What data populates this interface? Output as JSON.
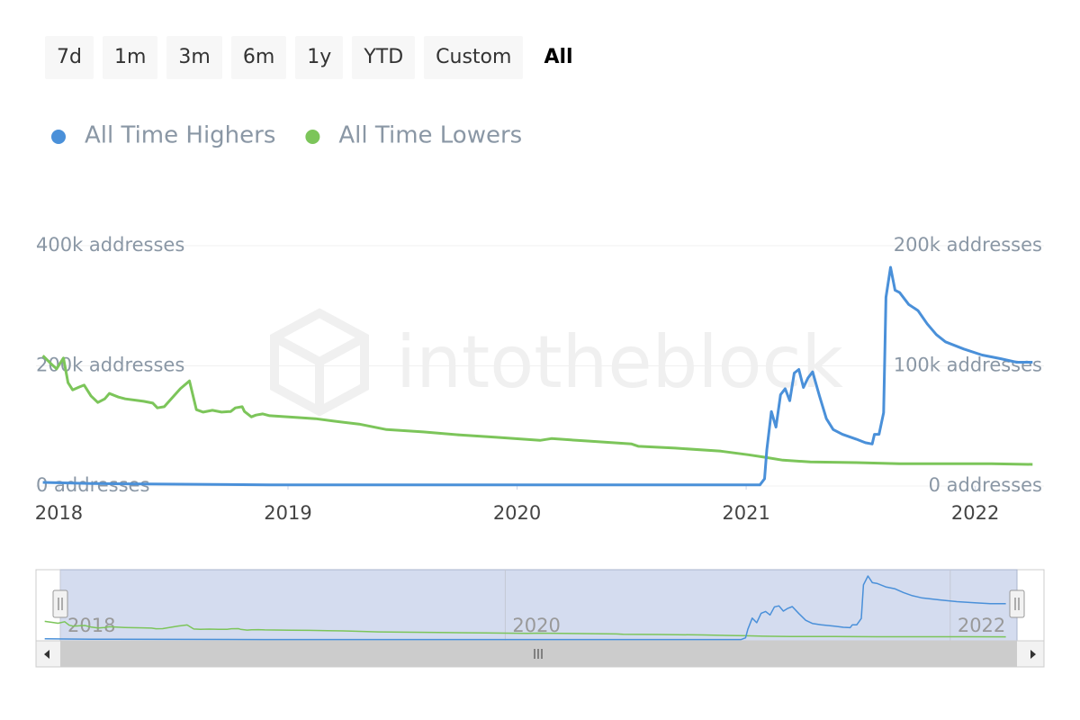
{
  "buttons": [
    "7d",
    "1m",
    "3m",
    "6m",
    "1y",
    "YTD",
    "Custom",
    "All"
  ],
  "selected_button": 7,
  "chart_data": {
    "type": "line",
    "legend": "top-left",
    "grid": true,
    "watermark": "intotheblock",
    "xlim": [
      2017.9,
      2022.3
    ],
    "xticks": [
      2018,
      2019,
      2020,
      2021,
      2022
    ],
    "ylim": [
      0,
      400000
    ],
    "yticks": [
      {
        "value": 0,
        "label": "0 addresses"
      },
      {
        "value": 200000,
        "label": "200k addresses"
      },
      {
        "value": 400000,
        "label": "400k addresses"
      }
    ],
    "y2lim": [
      0,
      200000
    ],
    "y2ticks": [
      {
        "value": 0,
        "label": "0 addresses"
      },
      {
        "value": 100000,
        "label": "100k addresses"
      },
      {
        "value": 200000,
        "label": "200k addresses"
      }
    ],
    "series": [
      {
        "name": "All Time Highers",
        "color": "#4a90d9",
        "axis": "y2",
        "x": [
          2017.93,
          2018.14,
          2018.92,
          2020.1,
          2021.06,
          2021.08,
          2021.09,
          2021.11,
          2021.13,
          2021.15,
          2021.17,
          2021.19,
          2021.21,
          2021.23,
          2021.25,
          2021.27,
          2021.29,
          2021.32,
          2021.35,
          2021.38,
          2021.42,
          2021.48,
          2021.52,
          2021.55,
          2021.56,
          2021.58,
          2021.6,
          2021.61,
          2021.63,
          2021.65,
          2021.67,
          2021.71,
          2021.75,
          2021.79,
          2021.83,
          2021.87,
          2021.95,
          2022.03,
          2022.11,
          2022.18,
          2022.25
        ],
        "values": [
          3000,
          2000,
          1000,
          1000,
          1000,
          6000,
          30000,
          62000,
          49000,
          76000,
          81000,
          71000,
          94000,
          97000,
          82000,
          90000,
          95000,
          75000,
          56000,
          47000,
          43000,
          39000,
          36000,
          35000,
          43000,
          43000,
          61000,
          157000,
          182000,
          163000,
          161000,
          151000,
          146000,
          135000,
          126000,
          120000,
          114000,
          109000,
          106000,
          103000,
          103000
        ]
      },
      {
        "name": "All Time Lowers",
        "color": "#7cc55a",
        "x": [
          2017.93,
          2017.97,
          2017.99,
          2018.02,
          2018.04,
          2018.06,
          2018.09,
          2018.11,
          2018.14,
          2018.17,
          2018.2,
          2018.22,
          2018.26,
          2018.29,
          2018.37,
          2018.41,
          2018.43,
          2018.46,
          2018.49,
          2018.53,
          2018.57,
          2018.6,
          2018.63,
          2018.67,
          2018.71,
          2018.75,
          2018.77,
          2018.8,
          2018.81,
          2018.84,
          2018.86,
          2018.89,
          2018.92,
          2019.04,
          2019.12,
          2019.2,
          2019.31,
          2019.43,
          2019.59,
          2019.75,
          2019.91,
          2020.1,
          2020.15,
          2020.3,
          2020.5,
          2020.53,
          2020.69,
          2020.89,
          2021.01,
          2021.08,
          2021.16,
          2021.28,
          2021.48,
          2021.67,
          2021.87,
          2022.07,
          2022.25
        ],
        "values": [
          217000,
          202000,
          195000,
          213000,
          172000,
          160000,
          165000,
          168000,
          150000,
          139000,
          145000,
          154000,
          148000,
          145000,
          141000,
          138000,
          130000,
          132000,
          145000,
          162000,
          175000,
          127000,
          123000,
          126000,
          123000,
          124000,
          130000,
          132000,
          124000,
          115000,
          118000,
          120000,
          117000,
          114000,
          112000,
          108000,
          103000,
          94000,
          90000,
          85000,
          81000,
          76000,
          79000,
          75000,
          70000,
          66000,
          63000,
          58000,
          52000,
          48000,
          43000,
          40000,
          39000,
          37000,
          37000,
          37000,
          36000
        ]
      }
    ],
    "navigator": {
      "xlim": [
        2018,
        2022.3
      ],
      "xticks": [
        2018,
        2020,
        2022
      ]
    }
  }
}
